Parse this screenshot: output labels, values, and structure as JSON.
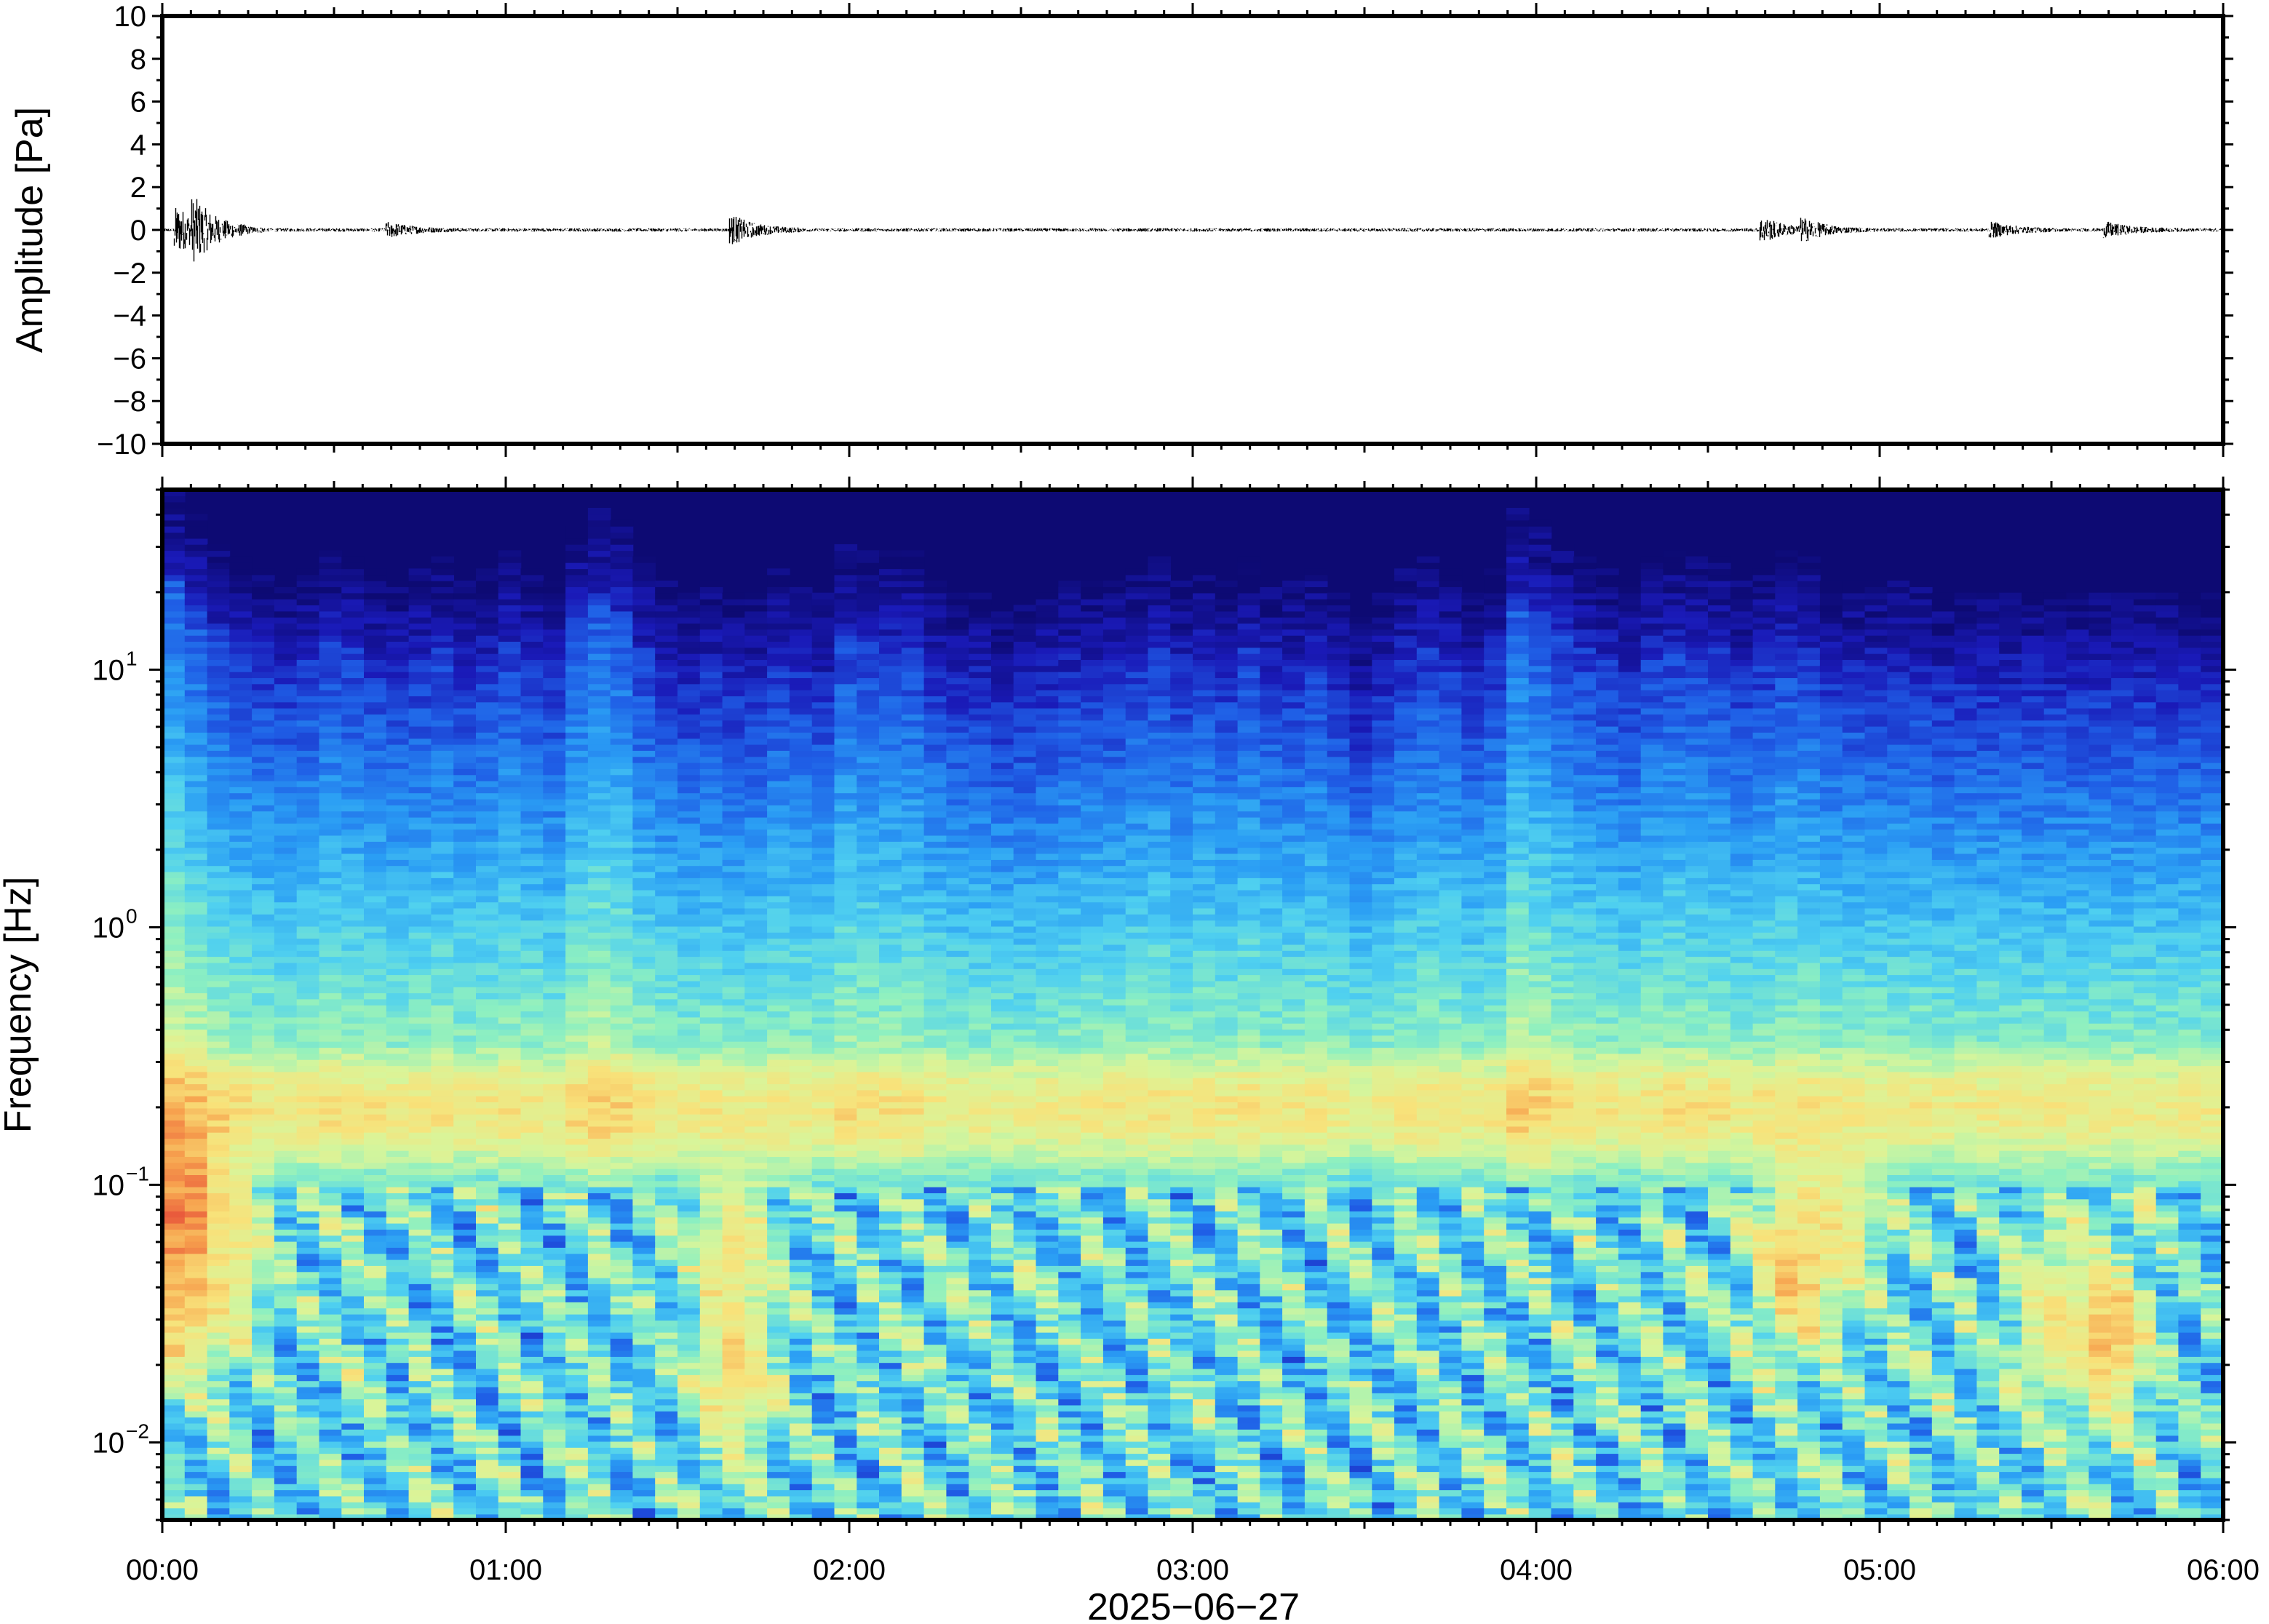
{
  "chart_data": [
    {
      "type": "line",
      "ylabel": "Amplitude [Pa]",
      "ylim": [
        -10,
        10
      ],
      "yticks": [
        {
          "v": 10,
          "label": "10"
        },
        {
          "v": 8,
          "label": "8"
        },
        {
          "v": 6,
          "label": "6"
        },
        {
          "v": 4,
          "label": "4"
        },
        {
          "v": 2,
          "label": "2"
        },
        {
          "v": 0,
          "label": "0"
        },
        {
          "v": -2,
          "label": "−2"
        },
        {
          "v": -4,
          "label": "−4"
        },
        {
          "v": -6,
          "label": "−6"
        },
        {
          "v": -8,
          "label": "−8"
        },
        {
          "v": -10,
          "label": "−10"
        }
      ],
      "xlim": [
        "00:00",
        "06:00"
      ],
      "bursts": [
        {
          "t_min": 3,
          "amp_pa": 1.0
        },
        {
          "t_min": 6,
          "amp_pa": 0.9
        },
        {
          "t_min": 40,
          "amp_pa": 0.3
        },
        {
          "t_min": 100,
          "amp_pa": 0.6
        },
        {
          "t_min": 280,
          "amp_pa": 0.5
        },
        {
          "t_min": 287,
          "amp_pa": 0.4
        },
        {
          "t_min": 320,
          "amp_pa": 0.3
        },
        {
          "t_min": 340,
          "amp_pa": 0.3
        }
      ],
      "background_amp_pa": 0.08
    },
    {
      "type": "heatmap",
      "ylabel": "Frequency [Hz]",
      "yscale": "log",
      "ylim": [
        0.005,
        50
      ],
      "yticks": [
        {
          "v": 10,
          "base": "10",
          "exp": "1"
        },
        {
          "v": 1,
          "base": "10",
          "exp": "0"
        },
        {
          "v": 0.1,
          "base": "10",
          "exp": "−1"
        },
        {
          "v": 0.01,
          "base": "10",
          "exp": "−2"
        }
      ],
      "xlabel": "2025−06−27",
      "xticks": [
        "00:00",
        "01:00",
        "02:00",
        "03:00",
        "04:00",
        "05:00",
        "06:00"
      ],
      "colormap": [
        "#0d0a73",
        "#1a1ab8",
        "#1f5ee6",
        "#2a9df4",
        "#4fd0f0",
        "#8ef0c0",
        "#d8f59a",
        "#f8e27a",
        "#f7a24e",
        "#e8543a"
      ],
      "upper_energy_cutoff_hz_per_column": [
        22,
        18,
        14,
        12,
        11,
        10,
        11,
        13,
        12,
        11,
        10,
        11,
        12,
        10,
        11,
        13,
        11,
        10,
        16,
        19,
        17,
        12,
        10,
        9,
        10,
        9,
        9,
        11,
        10,
        9,
        14,
        13,
        13,
        13,
        10,
        9,
        9,
        8,
        8,
        9,
        10,
        10,
        10,
        11,
        12,
        10,
        11,
        10,
        12,
        10,
        10,
        11,
        9,
        7,
        9,
        11,
        12,
        11,
        9,
        11,
        19,
        17,
        14,
        12,
        11,
        10,
        12,
        13,
        12,
        12,
        10,
        11,
        13,
        12,
        10,
        10,
        10,
        10,
        10,
        9,
        9,
        9,
        9,
        9,
        9,
        9,
        9,
        9,
        9,
        9,
        9,
        9
      ],
      "low_freq_hotspots": [
        {
          "t_min": 4,
          "f_hz": 0.08,
          "level": 0.97
        },
        {
          "t_min": 4,
          "f_hz": 0.04,
          "level": 0.85
        },
        {
          "t_min": 12,
          "f_hz": 0.06,
          "level": 0.75
        },
        {
          "t_min": 100,
          "f_hz": 0.02,
          "level": 0.8
        },
        {
          "t_min": 100,
          "f_hz": 0.06,
          "level": 0.75
        },
        {
          "t_min": 285,
          "f_hz": 0.05,
          "level": 0.85
        },
        {
          "t_min": 293,
          "f_hz": 0.07,
          "level": 0.75
        },
        {
          "t_min": 340,
          "f_hz": 0.025,
          "level": 0.85
        },
        {
          "t_min": 330,
          "f_hz": 0.03,
          "level": 0.75
        }
      ]
    }
  ]
}
